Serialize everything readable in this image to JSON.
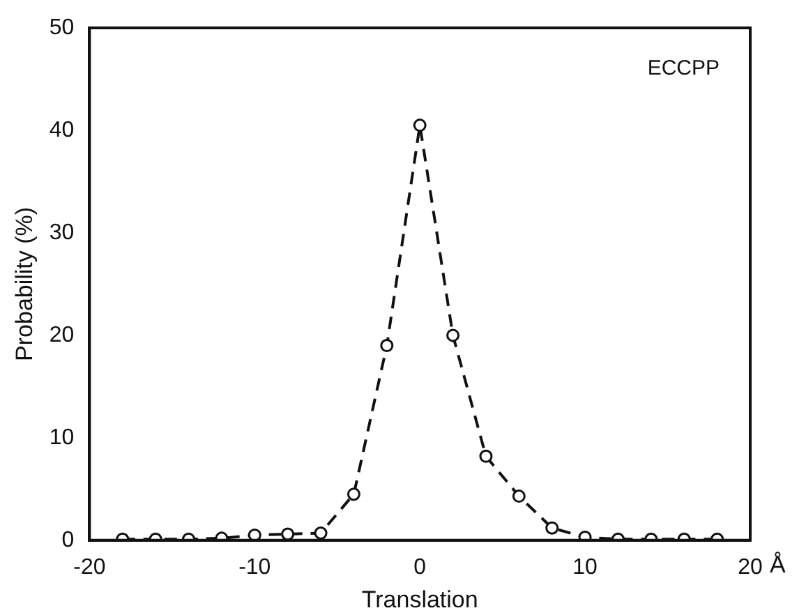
{
  "chart_data": {
    "type": "line",
    "xlabel": "Translation",
    "ylabel": "Probability (%)",
    "annotations": [
      "ECCPP",
      "Å"
    ],
    "x": [
      -18,
      -16,
      -14,
      -12,
      -10,
      -8,
      -6,
      -4,
      -2,
      0,
      2,
      4,
      6,
      8,
      10,
      12,
      14,
      16,
      18
    ],
    "series": [
      {
        "color": "#111111",
        "values": [
          0.1,
          0.1,
          0.1,
          0.2,
          0.5,
          0.6,
          0.7,
          4.5,
          19,
          40.5,
          20,
          8.2,
          4.3,
          1.2,
          0.3,
          0.1,
          0.1,
          0.1,
          0.1
        ]
      }
    ],
    "xlim": [
      -20,
      20
    ],
    "xticks": [
      -20,
      -10,
      0,
      10,
      20
    ],
    "ylim": [
      0,
      50
    ],
    "yticks": [
      0,
      10,
      20,
      30,
      40,
      50
    ],
    "grid": false,
    "legend": false,
    "marker": "circle",
    "line_style": "dashed"
  }
}
